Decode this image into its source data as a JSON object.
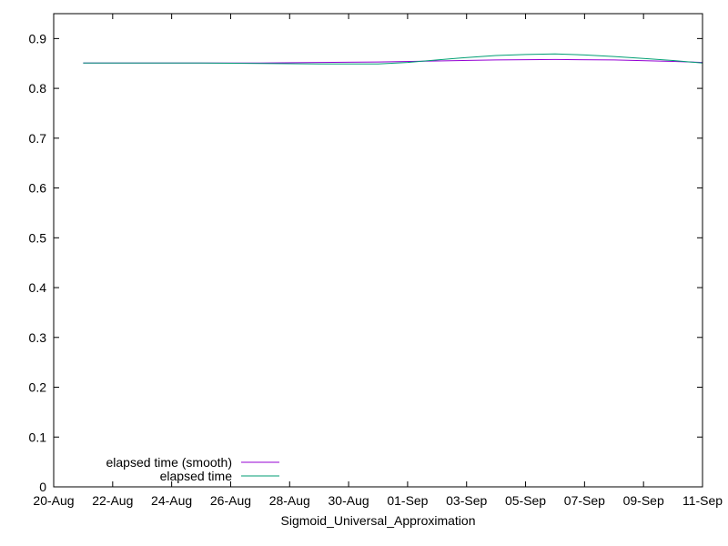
{
  "chart_data": {
    "type": "line",
    "title": "",
    "xlabel": "Sigmoid_Universal_Approximation",
    "ylabel": "",
    "x_ticks": [
      "20-Aug",
      "22-Aug",
      "24-Aug",
      "26-Aug",
      "28-Aug",
      "30-Aug",
      "01-Sep",
      "03-Sep",
      "05-Sep",
      "07-Sep",
      "09-Sep",
      "11-Sep"
    ],
    "y_ticks": [
      "0",
      "0.1",
      "0.2",
      "0.3",
      "0.4",
      "0.5",
      "0.6",
      "0.7",
      "0.8",
      "0.9"
    ],
    "x_range": [
      "2023-08-20",
      "2023-09-11"
    ],
    "ylim": [
      0,
      0.95
    ],
    "grid": false,
    "legend_position": "bottom-left",
    "series": [
      {
        "name": "elapsed time (smooth)",
        "color": "#9400d3",
        "points": [
          {
            "x": "2023-08-21",
            "y": 0.851
          },
          {
            "x": "2023-08-23",
            "y": 0.851
          },
          {
            "x": "2023-08-25",
            "y": 0.851
          },
          {
            "x": "2023-08-27",
            "y": 0.851
          },
          {
            "x": "2023-08-29",
            "y": 0.852
          },
          {
            "x": "2023-08-31",
            "y": 0.853
          },
          {
            "x": "2023-09-02",
            "y": 0.855
          },
          {
            "x": "2023-09-04",
            "y": 0.857
          },
          {
            "x": "2023-09-06",
            "y": 0.858
          },
          {
            "x": "2023-09-08",
            "y": 0.857
          },
          {
            "x": "2023-09-10",
            "y": 0.854
          },
          {
            "x": "2023-09-11",
            "y": 0.852
          }
        ]
      },
      {
        "name": "elapsed time",
        "color": "#009e73",
        "points": [
          {
            "x": "2023-08-21",
            "y": 0.851
          },
          {
            "x": "2023-08-25",
            "y": 0.851
          },
          {
            "x": "2023-08-27",
            "y": 0.85
          },
          {
            "x": "2023-08-29",
            "y": 0.849
          },
          {
            "x": "2023-08-31",
            "y": 0.849
          },
          {
            "x": "2023-09-01",
            "y": 0.852
          },
          {
            "x": "2023-09-02",
            "y": 0.857
          },
          {
            "x": "2023-09-03",
            "y": 0.862
          },
          {
            "x": "2023-09-04",
            "y": 0.866
          },
          {
            "x": "2023-09-05",
            "y": 0.868
          },
          {
            "x": "2023-09-06",
            "y": 0.869
          },
          {
            "x": "2023-09-07",
            "y": 0.867
          },
          {
            "x": "2023-09-08",
            "y": 0.864
          },
          {
            "x": "2023-09-09",
            "y": 0.86
          },
          {
            "x": "2023-09-10",
            "y": 0.856
          },
          {
            "x": "2023-09-11",
            "y": 0.851
          }
        ]
      }
    ]
  }
}
